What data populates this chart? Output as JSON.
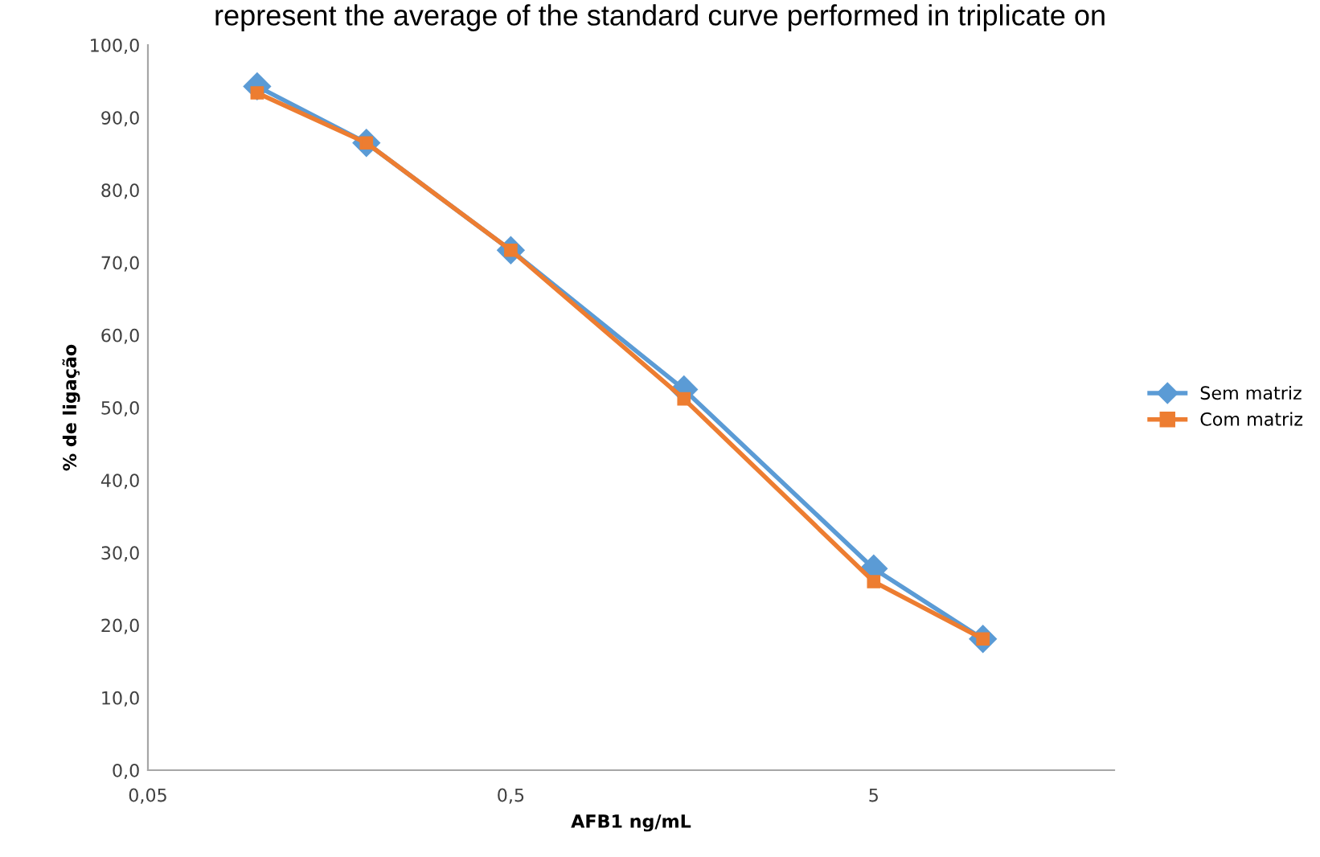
{
  "chart_data": {
    "type": "line",
    "title": "represent the average of the standard curve performed in triplicate on",
    "xlabel": "AFB1 ng/mL",
    "ylabel": "% de ligação",
    "log": "x",
    "x": [
      0.1,
      0.2,
      0.5,
      1.5,
      5,
      10
    ],
    "series": [
      {
        "name": "Sem matriz",
        "color": "#5b9bd5",
        "marker": "diamond",
        "values": [
          94.3,
          86.5,
          71.7,
          52.5,
          27.8,
          18.1
        ]
      },
      {
        "name": "Com matriz",
        "color": "#ed7d31",
        "marker": "square",
        "values": [
          93.4,
          86.5,
          71.7,
          51.2,
          26.0,
          18.1
        ]
      }
    ],
    "xlim": [
      0.05,
      23
    ],
    "xticks": [
      {
        "value": 0.05,
        "label": "0,05"
      },
      {
        "value": 0.5,
        "label": "0,5"
      },
      {
        "value": 5,
        "label": "5"
      }
    ],
    "ylim": [
      0,
      100
    ],
    "yticks": [
      {
        "value": 0,
        "label": "0,0"
      },
      {
        "value": 10,
        "label": "10,0"
      },
      {
        "value": 20,
        "label": "20,0"
      },
      {
        "value": 30,
        "label": "30,0"
      },
      {
        "value": 40,
        "label": "40,0"
      },
      {
        "value": 50,
        "label": "50,0"
      },
      {
        "value": 60,
        "label": "60,0"
      },
      {
        "value": 70,
        "label": "70,0"
      },
      {
        "value": 80,
        "label": "80,0"
      },
      {
        "value": 90,
        "label": "90,0"
      },
      {
        "value": 100,
        "label": "100,0"
      }
    ],
    "grid": false,
    "legend": "right"
  }
}
